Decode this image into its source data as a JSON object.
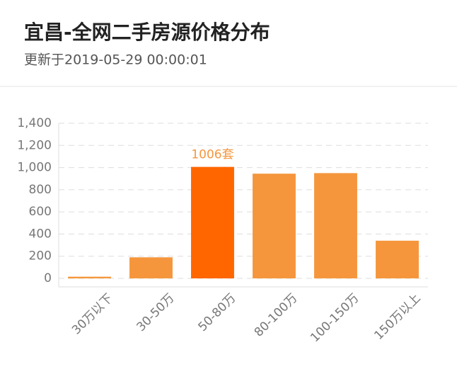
{
  "chart_data": {
    "type": "bar",
    "title": "宜昌-全网二手房源价格分布",
    "subtitle": "更新于2019-05-29 00:00:01",
    "categories": [
      "30万以下",
      "30-50万",
      "50-80万",
      "80-100万",
      "100-150万",
      "150万以上"
    ],
    "values": [
      15,
      190,
      1006,
      945,
      950,
      340
    ],
    "value_labels": [
      null,
      null,
      "1006套",
      null,
      null,
      null
    ],
    "color": "#f5963c",
    "highlight_color": "#ff6600",
    "ylim": [
      0,
      1400
    ],
    "yticks": [
      0,
      200,
      400,
      600,
      800,
      {
        "value": 1000,
        "label": "1,000"
      },
      {
        "value": 1200,
        "label": "1,200"
      },
      {
        "value": 1400,
        "label": "1,400"
      }
    ],
    "grid": true
  }
}
